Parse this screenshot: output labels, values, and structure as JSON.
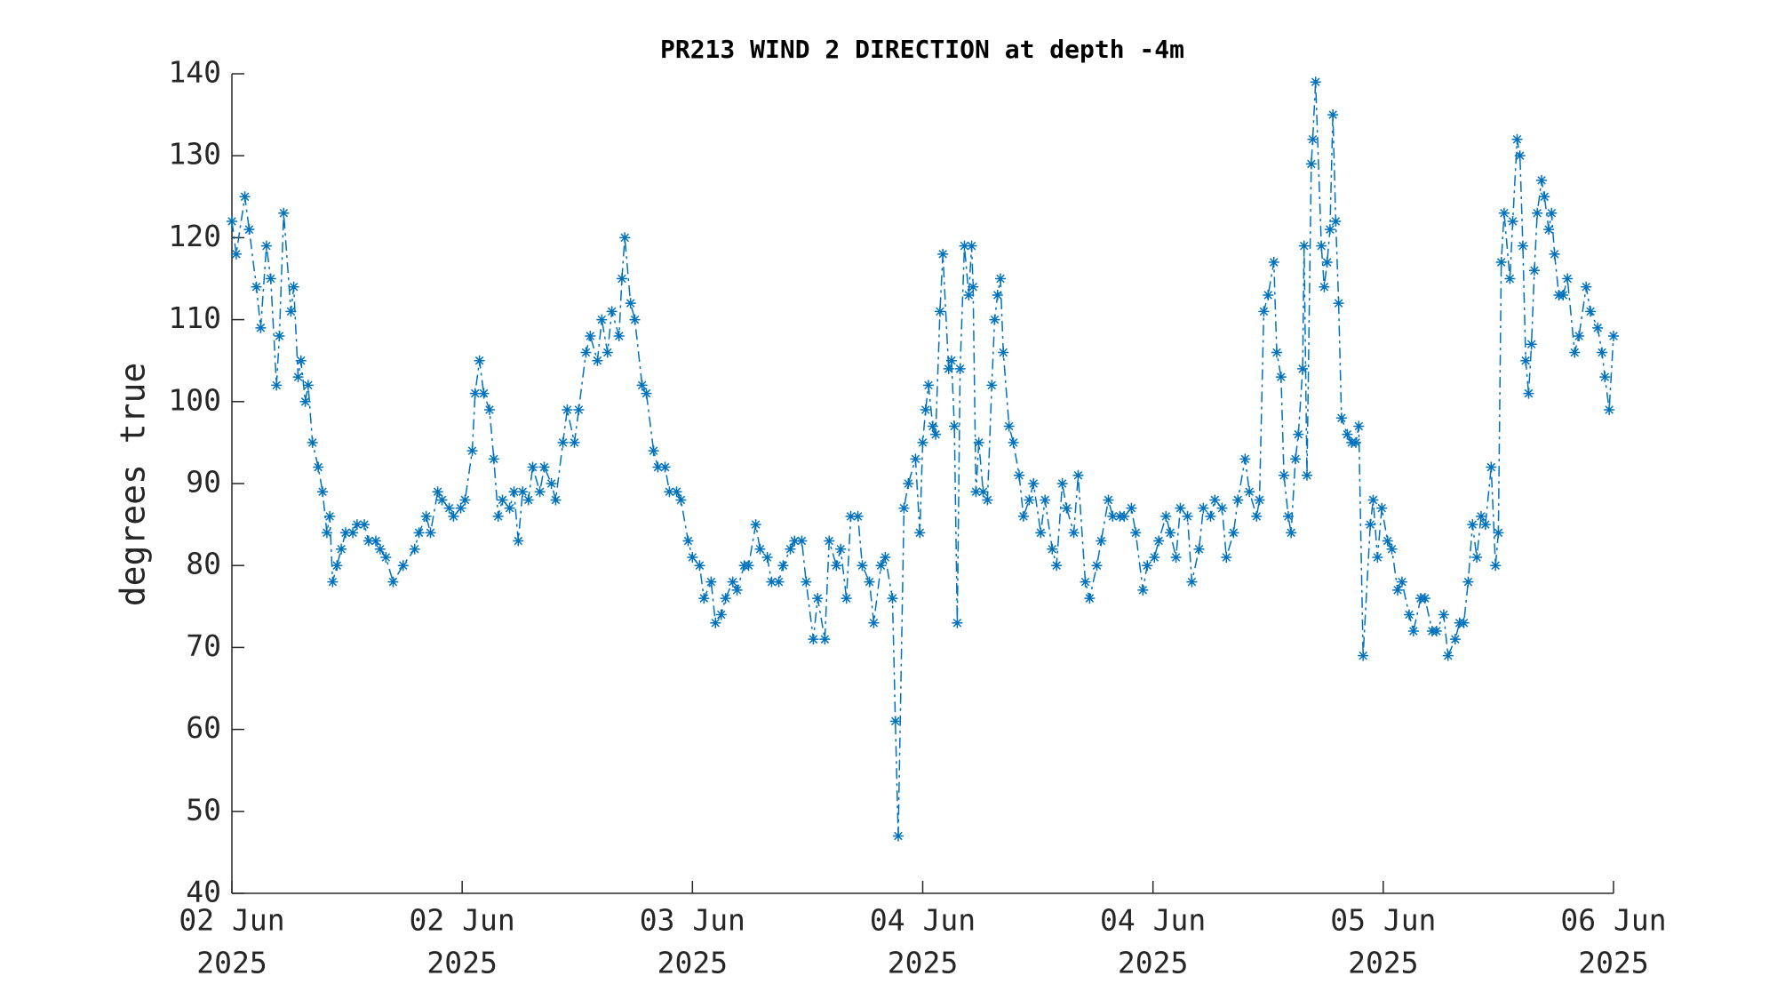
{
  "chart_data": {
    "type": "line",
    "title": "PR213 WIND 2 DIRECTION at depth -4m",
    "ylabel": "degrees true",
    "xlim": [
      0,
      96
    ],
    "xticks": [
      {
        "value": 0,
        "label": [
          "02 Jun",
          "2025"
        ]
      },
      {
        "value": 16,
        "label": [
          "02 Jun",
          "2025"
        ]
      },
      {
        "value": 32,
        "label": [
          "03 Jun",
          "2025"
        ]
      },
      {
        "value": 48,
        "label": [
          "04 Jun",
          "2025"
        ]
      },
      {
        "value": 64,
        "label": [
          "04 Jun",
          "2025"
        ]
      },
      {
        "value": 80,
        "label": [
          "05 Jun",
          "2025"
        ]
      },
      {
        "value": 96,
        "label": [
          "06 Jun",
          "2025"
        ]
      }
    ],
    "ylim": [
      40,
      140
    ],
    "yticks": [
      40,
      50,
      60,
      70,
      80,
      90,
      100,
      110,
      120,
      130,
      140
    ],
    "grid": false,
    "x": [
      0,
      0.3,
      0.9,
      1.2,
      1.7,
      2.0,
      2.4,
      2.7,
      3.1,
      3.3,
      3.6,
      4.1,
      4.3,
      4.6,
      4.8,
      5.1,
      5.3,
      5.6,
      6.0,
      6.3,
      6.6,
      6.8,
      7.0,
      7.3,
      7.6,
      7.9,
      8.4,
      8.7,
      9.2,
      9.5,
      10.0,
      10.3,
      10.7,
      11.2,
      11.9,
      12.7,
      13.0,
      13.5,
      13.8,
      14.3,
      14.6,
      15.1,
      15.4,
      15.9,
      16.2,
      16.7,
      16.9,
      17.2,
      17.5,
      17.9,
      18.2,
      18.5,
      18.8,
      19.3,
      19.6,
      19.9,
      20.2,
      20.6,
      20.9,
      21.4,
      21.7,
      22.2,
      22.5,
      23.0,
      23.3,
      23.8,
      24.1,
      24.6,
      24.9,
      25.4,
      25.7,
      26.1,
      26.4,
      26.9,
      27.1,
      27.3,
      27.7,
      28.0,
      28.5,
      28.8,
      29.3,
      29.6,
      30.1,
      30.4,
      30.9,
      31.2,
      31.7,
      32.0,
      32.5,
      32.8,
      33.3,
      33.6,
      34.0,
      34.3,
      34.8,
      35.1,
      35.6,
      35.9,
      36.4,
      36.7,
      37.2,
      37.5,
      38.0,
      38.3,
      38.8,
      39.1,
      39.6,
      39.9,
      40.4,
      40.7,
      41.2,
      41.5,
      42.0,
      42.3,
      42.7,
      43.0,
      43.5,
      43.8,
      44.3,
      44.6,
      45.1,
      45.4,
      45.9,
      46.1,
      46.3,
      46.7,
      47.0,
      47.5,
      47.8,
      48.0,
      48.2,
      48.4,
      48.7,
      48.9,
      49.2,
      49.4,
      49.8,
      50.0,
      50.2,
      50.4,
      50.6,
      50.9,
      51.2,
      51.4,
      51.5,
      51.7,
      51.9,
      52.2,
      52.5,
      52.8,
      53.0,
      53.2,
      53.4,
      53.6,
      54.0,
      54.3,
      54.7,
      55.0,
      55.4,
      55.7,
      56.2,
      56.5,
      57.0,
      57.3,
      57.7,
      58.0,
      58.5,
      58.8,
      59.3,
      59.6,
      60.1,
      60.4,
      60.9,
      61.2,
      61.7,
      62.0,
      62.5,
      62.8,
      63.3,
      63.6,
      64.1,
      64.4,
      64.9,
      65.2,
      65.6,
      65.9,
      66.4,
      66.7,
      67.2,
      67.5,
      68.0,
      68.3,
      68.8,
      69.1,
      69.6,
      69.9,
      70.4,
      70.7,
      71.2,
      71.4,
      71.7,
      72.0,
      72.4,
      72.6,
      72.9,
      73.1,
      73.4,
      73.6,
      73.9,
      74.1,
      74.4,
      74.5,
      74.7,
      75.0,
      75.1,
      75.3,
      75.7,
      75.9,
      76.1,
      76.3,
      76.5,
      76.7,
      76.9,
      77.1,
      77.5,
      77.8,
      78.1,
      78.3,
      78.6,
      79.1,
      79.3,
      79.6,
      79.9,
      80.3,
      80.6,
      81.0,
      81.3,
      81.8,
      82.1,
      82.6,
      82.9,
      83.4,
      83.7,
      84.2,
      84.5,
      85.0,
      85.3,
      85.6,
      85.9,
      86.2,
      86.5,
      86.8,
      87.1,
      87.5,
      87.8,
      88.0,
      88.2,
      88.4,
      88.8,
      89.0,
      89.3,
      89.5,
      89.7,
      89.9,
      90.1,
      90.3,
      90.5,
      90.7,
      91.0,
      91.2,
      91.5,
      91.7,
      91.9,
      92.2,
      92.5,
      92.8,
      93.3,
      93.6,
      94.1,
      94.4,
      94.9,
      95.2,
      95.4,
      95.7,
      96.0
    ],
    "series": [
      {
        "color": "#0072bd",
        "values": [
          122,
          118,
          125,
          121,
          114,
          109,
          119,
          115,
          102,
          108,
          123,
          111,
          114,
          103,
          105,
          100,
          102,
          95,
          92,
          89,
          84,
          86,
          78,
          80,
          82,
          84,
          84,
          85,
          85,
          83,
          83,
          82,
          81,
          78,
          80,
          82,
          84,
          86,
          84,
          89,
          88,
          87,
          86,
          87,
          88,
          94,
          101,
          105,
          101,
          99,
          93,
          86,
          88,
          87,
          89,
          83,
          89,
          88,
          92,
          89,
          92,
          90,
          88,
          95,
          99,
          95,
          99,
          106,
          108,
          105,
          110,
          106,
          111,
          108,
          115,
          120,
          112,
          110,
          102,
          101,
          94,
          92,
          92,
          89,
          89,
          88,
          83,
          81,
          80,
          76,
          78,
          73,
          74,
          76,
          78,
          77,
          80,
          80,
          85,
          82,
          81,
          78,
          78,
          80,
          82,
          83,
          83,
          78,
          71,
          76,
          71,
          83,
          80,
          82,
          76,
          86,
          86,
          80,
          78,
          73,
          80,
          81,
          76,
          61,
          47,
          87,
          90,
          93,
          84,
          95,
          99,
          102,
          97,
          96,
          111,
          118,
          104,
          105,
          97,
          73,
          104,
          119,
          113,
          119,
          114,
          89,
          95,
          89,
          88,
          102,
          110,
          113,
          115,
          106,
          97,
          95,
          91,
          86,
          88,
          90,
          84,
          88,
          82,
          80,
          90,
          87,
          84,
          91,
          78,
          76,
          80,
          83,
          88,
          86,
          86,
          86,
          87,
          84,
          77,
          80,
          81,
          83,
          86,
          84,
          81,
          87,
          86,
          78,
          82,
          87,
          86,
          88,
          87,
          81,
          84,
          88,
          93,
          89,
          86,
          88,
          111,
          113,
          117,
          106,
          103,
          91,
          86,
          84,
          93,
          96,
          104,
          119,
          91,
          129,
          132,
          139,
          119,
          114,
          117,
          121,
          135,
          122,
          112,
          98,
          96,
          95,
          95,
          97,
          69,
          85,
          88,
          81,
          87,
          83,
          82,
          77,
          78,
          74,
          72,
          76,
          76,
          72,
          72,
          74,
          69,
          71,
          73,
          73,
          78,
          85,
          81,
          86,
          85,
          92,
          80,
          84,
          117,
          123,
          115,
          122,
          132,
          130,
          119,
          105,
          101,
          107,
          116,
          123,
          127,
          125,
          121,
          123,
          118,
          113,
          113,
          115,
          106,
          108,
          114,
          111,
          109,
          106,
          103,
          99,
          108
        ]
      }
    ]
  }
}
